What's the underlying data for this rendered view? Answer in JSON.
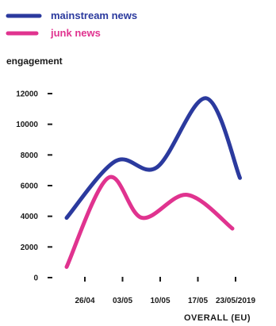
{
  "chart_data": {
    "type": "line",
    "ylabel": "engagement",
    "footer": "OVERALL  (EU)",
    "x_tick_labels": [
      "26/04",
      "03/05",
      "10/05",
      "17/05",
      "23/05/2019"
    ],
    "y_ticks": [
      0,
      2000,
      4000,
      6000,
      8000,
      10000,
      12000
    ],
    "ylim": [
      0,
      12000
    ],
    "grid": false,
    "legend_position": "top-left",
    "series": [
      {
        "name": "mainstream news",
        "color": "#2b3a9e",
        "x": [
          0.0,
          1.3,
          2.4,
          3.7,
          4.6
        ],
        "y": [
          3900,
          7600,
          7200,
          11700,
          6500
        ]
      },
      {
        "name": "junk news",
        "color": "#e0338f",
        "x": [
          0.0,
          1.1,
          2.0,
          3.2,
          4.4
        ],
        "y": [
          700,
          6500,
          3900,
          5400,
          3200
        ]
      }
    ]
  }
}
